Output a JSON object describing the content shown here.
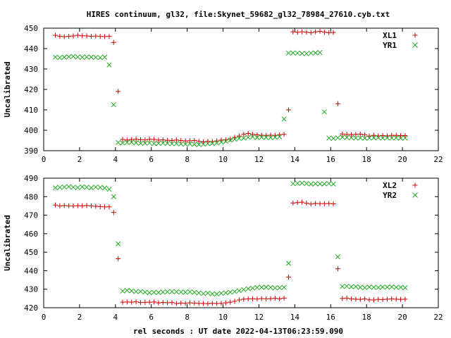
{
  "title": "HIRES continuum, gl32, file:Skynet_59682_gl32_78984_27610.cyb.txt",
  "xlabel": "rel seconds : UT date 2022-04-13T06:23:59.090",
  "chart_data": [
    {
      "type": "scatter",
      "ylabel": "Uncalibrated",
      "xlim": [
        0,
        22
      ],
      "ylim": [
        390,
        450
      ],
      "xticks": [
        0,
        2,
        4,
        6,
        8,
        10,
        12,
        14,
        16,
        18,
        20,
        22
      ],
      "yticks": [
        390,
        400,
        410,
        420,
        430,
        440,
        450
      ],
      "legend_position": "top-right",
      "series": [
        {
          "name": "XL1",
          "marker": "plus",
          "color": "#cc0000",
          "x": [
            0.65,
            0.9,
            1.15,
            1.4,
            1.65,
            1.9,
            2.15,
            2.4,
            2.65,
            2.9,
            3.15,
            3.4,
            3.65,
            3.9,
            4.15,
            4.4,
            4.65,
            4.9,
            5.15,
            5.4,
            5.65,
            5.9,
            6.15,
            6.4,
            6.65,
            6.9,
            7.15,
            7.4,
            7.65,
            7.9,
            8.15,
            8.4,
            8.65,
            8.9,
            9.15,
            9.4,
            9.65,
            9.9,
            10.15,
            10.4,
            10.65,
            10.9,
            11.15,
            11.4,
            11.65,
            11.9,
            12.15,
            12.4,
            12.65,
            12.9,
            13.15,
            13.4,
            13.65,
            13.9,
            14.15,
            14.4,
            14.65,
            14.9,
            15.15,
            15.4,
            15.65,
            15.9,
            16.15,
            16.4,
            16.65,
            16.9,
            17.15,
            17.4,
            17.65,
            17.9,
            18.15,
            18.4,
            18.65,
            18.9,
            19.15,
            19.4,
            19.65,
            19.9,
            20.15
          ],
          "y": [
            446.5,
            446,
            445.8,
            446,
            446.2,
            446.5,
            446.3,
            446.2,
            446,
            446.1,
            446,
            445.9,
            446,
            443,
            419,
            395.5,
            395.2,
            395.5,
            395.6,
            395.4,
            395.3,
            395.6,
            395.5,
            395.2,
            395.3,
            395.1,
            395,
            395.2,
            395,
            394.8,
            394.9,
            395,
            394.6,
            394.3,
            394.6,
            394.5,
            394.8,
            395.2,
            395.3,
            395.6,
            396.5,
            397.2,
            398,
            398.5,
            398,
            397.8,
            397.6,
            397.5,
            397.6,
            397.5,
            397.8,
            398,
            410,
            448.2,
            448,
            448.2,
            448,
            447.8,
            448.2,
            448.5,
            448,
            447.8,
            447.9,
            413,
            398.2,
            398,
            397.9,
            398,
            398.1,
            397.8,
            397.2,
            397.5,
            397.3,
            397.4,
            397.3,
            397.5,
            397.5,
            397.4,
            397.4
          ]
        },
        {
          "name": "YR1",
          "marker": "cross",
          "color": "#22aa22",
          "x": [
            0.65,
            0.9,
            1.15,
            1.4,
            1.65,
            1.9,
            2.15,
            2.4,
            2.65,
            2.9,
            3.15,
            3.4,
            3.65,
            3.9,
            4.15,
            4.4,
            4.65,
            4.9,
            5.15,
            5.4,
            5.65,
            5.9,
            6.15,
            6.4,
            6.65,
            6.9,
            7.15,
            7.4,
            7.65,
            7.9,
            8.15,
            8.4,
            8.65,
            8.9,
            9.15,
            9.4,
            9.65,
            9.9,
            10.15,
            10.4,
            10.65,
            10.9,
            11.15,
            11.4,
            11.65,
            11.9,
            12.15,
            12.4,
            12.65,
            12.9,
            13.15,
            13.4,
            13.65,
            13.9,
            14.15,
            14.4,
            14.65,
            14.9,
            15.15,
            15.4,
            15.65,
            15.9,
            16.15,
            16.4,
            16.65,
            16.9,
            17.15,
            17.4,
            17.65,
            17.9,
            18.15,
            18.4,
            18.65,
            18.9,
            19.15,
            19.4,
            19.65,
            19.9,
            20.15
          ],
          "y": [
            435.8,
            435.6,
            435.8,
            436,
            436.2,
            435.9,
            435.7,
            435.9,
            435.8,
            435.7,
            435.6,
            435.8,
            432,
            412.5,
            394,
            393.8,
            394,
            394.2,
            393.9,
            393.6,
            393.7,
            393.8,
            393.5,
            393.6,
            393.7,
            393.6,
            393.4,
            393.5,
            393.3,
            393.2,
            393.4,
            393.1,
            393,
            393.2,
            393.4,
            393.6,
            393.8,
            394.2,
            394.6,
            395.2,
            395.6,
            396,
            396.2,
            396.5,
            396.8,
            396.4,
            396.6,
            396.5,
            396.4,
            396.6,
            396.8,
            405.5,
            437.8,
            437.9,
            437.8,
            437.6,
            437.5,
            437.8,
            437.9,
            438.1,
            409,
            396.2,
            396,
            396.3,
            396.6,
            396.5,
            396.4,
            396.2,
            396.3,
            396.1,
            396.2,
            396.3,
            396.4,
            396.2,
            396.3,
            396.2,
            396.3,
            396.1,
            396.2
          ]
        }
      ]
    },
    {
      "type": "scatter",
      "ylabel": "Uncalibrated",
      "xlim": [
        0,
        22
      ],
      "ylim": [
        420,
        490
      ],
      "xticks": [
        0,
        2,
        4,
        6,
        8,
        10,
        12,
        14,
        16,
        18,
        20,
        22
      ],
      "yticks": [
        420,
        430,
        440,
        450,
        460,
        470,
        480,
        490
      ],
      "legend_position": "top-right",
      "series": [
        {
          "name": "XL2",
          "marker": "plus",
          "color": "#cc0000",
          "x": [
            0.65,
            0.9,
            1.15,
            1.4,
            1.65,
            1.9,
            2.15,
            2.4,
            2.65,
            2.9,
            3.15,
            3.4,
            3.65,
            3.9,
            4.15,
            4.4,
            4.65,
            4.9,
            5.15,
            5.4,
            5.65,
            5.9,
            6.15,
            6.4,
            6.65,
            6.9,
            7.15,
            7.4,
            7.65,
            7.9,
            8.15,
            8.4,
            8.65,
            8.9,
            9.15,
            9.4,
            9.65,
            9.9,
            10.15,
            10.4,
            10.65,
            10.9,
            11.15,
            11.4,
            11.65,
            11.9,
            12.15,
            12.4,
            12.65,
            12.9,
            13.15,
            13.4,
            13.65,
            13.9,
            14.15,
            14.4,
            14.65,
            14.9,
            15.15,
            15.4,
            15.65,
            15.9,
            16.15,
            16.4,
            16.65,
            16.9,
            17.15,
            17.4,
            17.65,
            17.9,
            18.15,
            18.4,
            18.65,
            18.9,
            19.15,
            19.4,
            19.65,
            19.9,
            20.15
          ],
          "y": [
            475.5,
            475,
            475.2,
            475,
            475,
            475.1,
            475,
            475.2,
            475,
            474.8,
            474.6,
            474.5,
            474.5,
            471.5,
            446.5,
            423,
            423.1,
            423,
            423.2,
            422.8,
            422.9,
            423,
            423.1,
            422.6,
            422.8,
            422.7,
            422.8,
            422.3,
            422.5,
            422.4,
            422.6,
            422.5,
            422.4,
            422.3,
            422.2,
            422.4,
            422.3,
            422.4,
            422.6,
            423,
            423.5,
            424.2,
            424.6,
            424.8,
            424.8,
            424.7,
            424.9,
            424.8,
            424.9,
            425.1,
            424.8,
            425.2,
            436.5,
            476.6,
            476.8,
            477,
            476.5,
            476,
            476.3,
            476.2,
            476.2,
            476.3,
            476.1,
            441,
            425,
            425.2,
            424.8,
            424.6,
            424.5,
            424.8,
            424.3,
            424.2,
            424.5,
            424.4,
            424.6,
            424.8,
            424.6,
            424.5,
            424.6
          ]
        },
        {
          "name": "YR2",
          "marker": "cross",
          "color": "#22aa22",
          "x": [
            0.65,
            0.9,
            1.15,
            1.4,
            1.65,
            1.9,
            2.15,
            2.4,
            2.65,
            2.9,
            3.15,
            3.4,
            3.65,
            3.9,
            4.15,
            4.4,
            4.65,
            4.9,
            5.15,
            5.4,
            5.65,
            5.9,
            6.15,
            6.4,
            6.65,
            6.9,
            7.15,
            7.4,
            7.65,
            7.9,
            8.15,
            8.4,
            8.65,
            8.9,
            9.15,
            9.4,
            9.65,
            9.9,
            10.15,
            10.4,
            10.65,
            10.9,
            11.15,
            11.4,
            11.65,
            11.9,
            12.15,
            12.4,
            12.65,
            12.9,
            13.15,
            13.4,
            13.65,
            13.9,
            14.15,
            14.4,
            14.65,
            14.9,
            15.15,
            15.4,
            15.65,
            15.9,
            16.15,
            16.4,
            16.65,
            16.9,
            17.15,
            17.4,
            17.65,
            17.9,
            18.15,
            18.4,
            18.65,
            18.9,
            19.15,
            19.4,
            19.65,
            19.9,
            20.15
          ],
          "y": [
            484.8,
            485,
            485.2,
            485.4,
            485.1,
            484.9,
            485.3,
            485.1,
            484.8,
            485.2,
            485,
            484.7,
            484,
            480,
            454.5,
            429,
            429.4,
            429.1,
            428.7,
            428.8,
            428.4,
            428.1,
            428.3,
            428.2,
            428.5,
            428.6,
            428.7,
            428.6,
            428.5,
            428.4,
            428.6,
            428.3,
            428,
            427.7,
            427.9,
            427.5,
            427.4,
            427.8,
            428,
            428.4,
            428.7,
            429.2,
            429.8,
            430.3,
            430.6,
            430.9,
            431,
            431.1,
            430.9,
            430.7,
            430.8,
            431,
            444,
            487,
            487.2,
            487.3,
            487.1,
            486.8,
            487,
            486.9,
            486.9,
            487.1,
            486.8,
            447.5,
            431.5,
            431.6,
            431.3,
            431.4,
            431,
            430.8,
            431.2,
            431,
            430.9,
            431.2,
            431.1,
            431.3,
            431,
            431,
            430.8
          ]
        }
      ]
    }
  ]
}
